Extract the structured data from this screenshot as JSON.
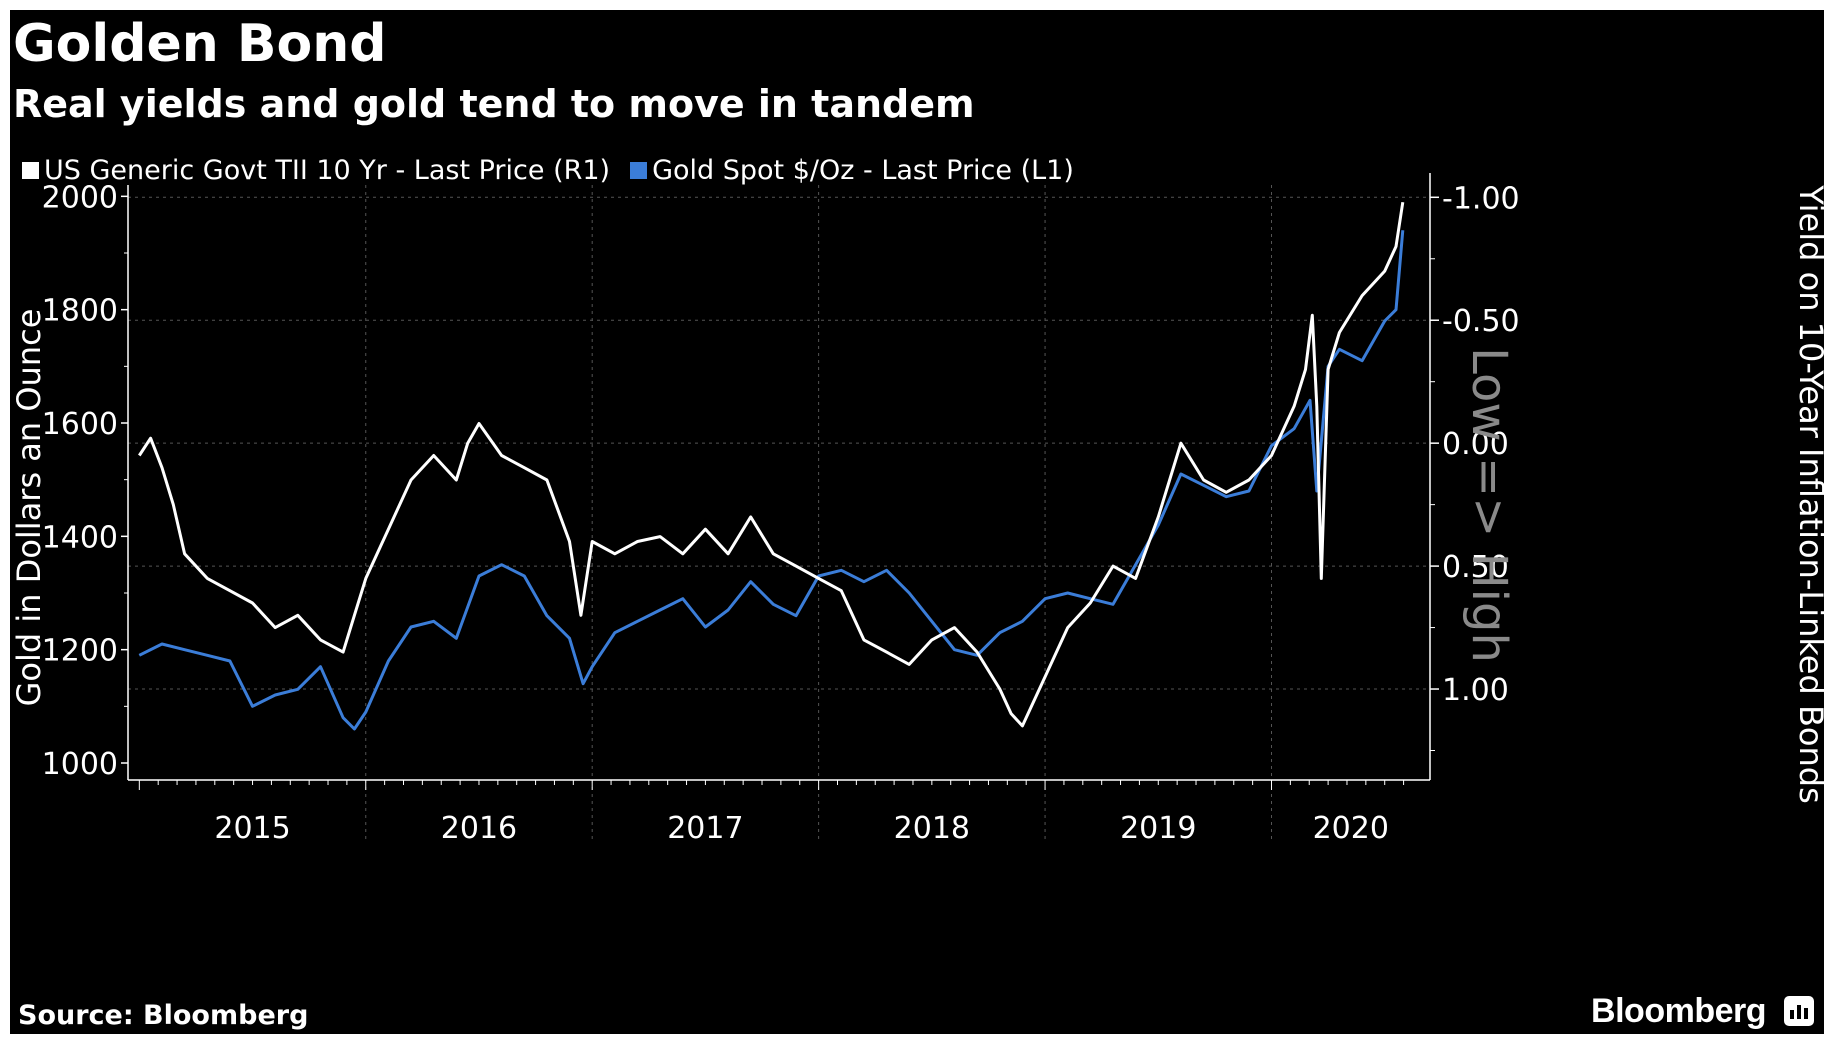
{
  "title": "Golden Bond",
  "subtitle": "Real yields and gold tend to move in tandem",
  "source": "Source: Bloomberg",
  "brand": "Bloomberg",
  "colors": {
    "gold": "#3b7dd8",
    "tips": "#ffffff",
    "background": "#000000",
    "grid": "#555555"
  },
  "chart_data": {
    "type": "line",
    "legend": [
      "US Generic Govt TII 10 Yr - Last Price (R1)",
      "Gold Spot $/Oz - Last Price (L1)"
    ],
    "x_tick_labels": [
      "2015",
      "2016",
      "2017",
      "2018",
      "2019",
      "2020"
    ],
    "x_range": [
      2014.95,
      2020.7
    ],
    "left_axis": {
      "label": "Gold in Dollars an Ounce",
      "ylim": [
        970,
        2020
      ],
      "ticks": [
        1000,
        1200,
        1400,
        1600,
        1800,
        2000
      ],
      "tick_labels": [
        "1000",
        "1200",
        "1400",
        "1600",
        "1800",
        "2000"
      ]
    },
    "right_axis": {
      "label": "Yield on 10-Year Inflation-Linked Bonds",
      "inverted": true,
      "ylim": [
        -1.05,
        1.37
      ],
      "ticks": [
        -1.0,
        -0.5,
        0.0,
        0.5,
        1.0
      ],
      "tick_labels": [
        "-1.00",
        "-0.50",
        "0.00",
        "0.50",
        "1.00"
      ],
      "annotation": "Low => High"
    },
    "series": [
      {
        "name": "Gold Spot $/Oz - Last Price (L1)",
        "axis": "left",
        "x": [
          2015.0,
          2015.1,
          2015.2,
          2015.3,
          2015.4,
          2015.5,
          2015.6,
          2015.7,
          2015.8,
          2015.9,
          2015.95,
          2016.0,
          2016.1,
          2016.2,
          2016.3,
          2016.4,
          2016.5,
          2016.6,
          2016.7,
          2016.8,
          2016.9,
          2016.96,
          2017.0,
          2017.1,
          2017.2,
          2017.3,
          2017.4,
          2017.5,
          2017.6,
          2017.7,
          2017.8,
          2017.9,
          2018.0,
          2018.1,
          2018.2,
          2018.3,
          2018.4,
          2018.5,
          2018.6,
          2018.7,
          2018.8,
          2018.9,
          2019.0,
          2019.1,
          2019.2,
          2019.3,
          2019.4,
          2019.5,
          2019.6,
          2019.7,
          2019.8,
          2019.9,
          2020.0,
          2020.1,
          2020.17,
          2020.2,
          2020.25,
          2020.3,
          2020.4,
          2020.5,
          2020.55,
          2020.58
        ],
        "values": [
          1190,
          1210,
          1200,
          1190,
          1180,
          1100,
          1120,
          1130,
          1170,
          1080,
          1060,
          1090,
          1180,
          1240,
          1250,
          1220,
          1330,
          1350,
          1330,
          1260,
          1220,
          1140,
          1170,
          1230,
          1250,
          1270,
          1290,
          1240,
          1270,
          1320,
          1280,
          1260,
          1330,
          1340,
          1320,
          1340,
          1300,
          1250,
          1200,
          1190,
          1230,
          1250,
          1290,
          1300,
          1290,
          1280,
          1350,
          1420,
          1510,
          1490,
          1470,
          1480,
          1560,
          1590,
          1640,
          1480,
          1700,
          1730,
          1710,
          1780,
          1800,
          1940
        ]
      },
      {
        "name": "US Generic Govt TII 10 Yr - Last Price (R1)",
        "axis": "right",
        "x": [
          2015.0,
          2015.05,
          2015.1,
          2015.15,
          2015.2,
          2015.3,
          2015.4,
          2015.5,
          2015.6,
          2015.7,
          2015.8,
          2015.9,
          2015.95,
          2016.0,
          2016.1,
          2016.2,
          2016.3,
          2016.4,
          2016.45,
          2016.5,
          2016.6,
          2016.7,
          2016.8,
          2016.9,
          2016.95,
          2017.0,
          2017.1,
          2017.2,
          2017.3,
          2017.4,
          2017.5,
          2017.6,
          2017.7,
          2017.8,
          2017.9,
          2018.0,
          2018.1,
          2018.2,
          2018.3,
          2018.4,
          2018.5,
          2018.6,
          2018.7,
          2018.8,
          2018.85,
          2018.9,
          2019.0,
          2019.1,
          2019.2,
          2019.3,
          2019.4,
          2019.5,
          2019.6,
          2019.7,
          2019.8,
          2019.9,
          2020.0,
          2020.1,
          2020.15,
          2020.18,
          2020.2,
          2020.22,
          2020.25,
          2020.3,
          2020.4,
          2020.5,
          2020.55,
          2020.58
        ],
        "values": [
          0.05,
          -0.02,
          0.1,
          0.25,
          0.45,
          0.55,
          0.6,
          0.65,
          0.75,
          0.7,
          0.8,
          0.85,
          0.7,
          0.55,
          0.35,
          0.15,
          0.05,
          0.15,
          0.0,
          -0.08,
          0.05,
          0.1,
          0.15,
          0.4,
          0.7,
          0.4,
          0.45,
          0.4,
          0.38,
          0.45,
          0.35,
          0.45,
          0.3,
          0.45,
          0.5,
          0.55,
          0.6,
          0.8,
          0.85,
          0.9,
          0.8,
          0.75,
          0.85,
          1.0,
          1.1,
          1.15,
          0.95,
          0.75,
          0.65,
          0.5,
          0.55,
          0.3,
          0.0,
          0.15,
          0.2,
          0.15,
          0.05,
          -0.15,
          -0.3,
          -0.52,
          -0.15,
          0.55,
          -0.3,
          -0.45,
          -0.6,
          -0.7,
          -0.8,
          -0.98
        ]
      }
    ]
  }
}
